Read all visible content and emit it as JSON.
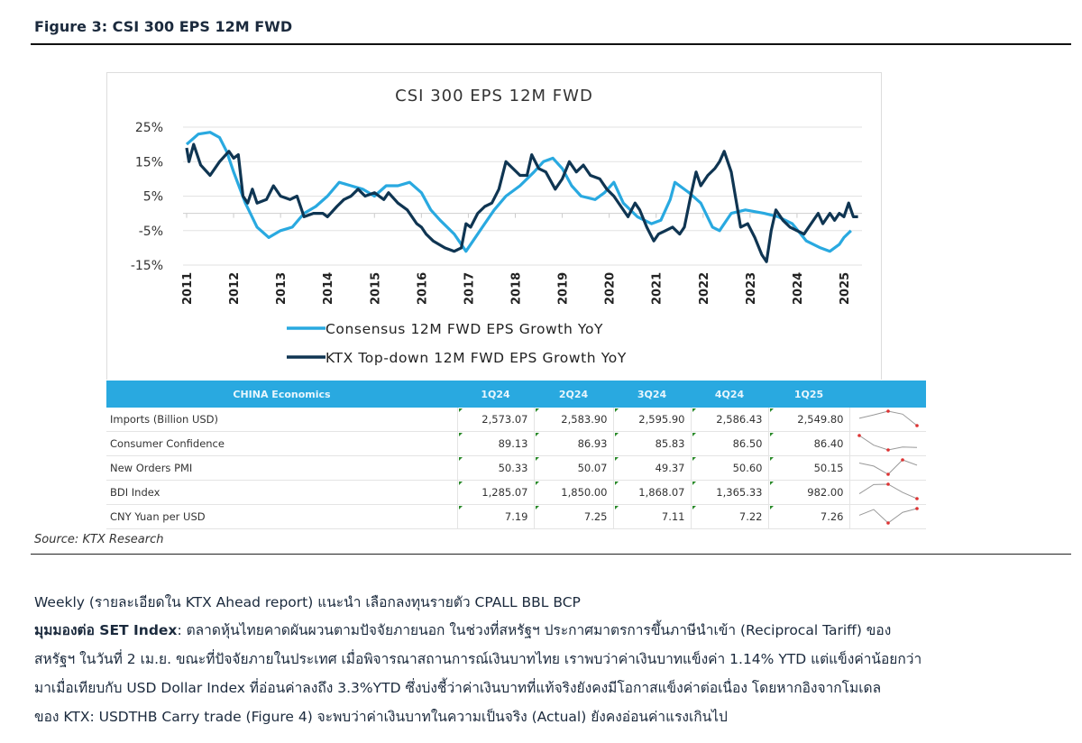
{
  "figure_title": "Figure 3: CSI 300 EPS 12M FWD",
  "chart_data": {
    "type": "line",
    "title": "CSI 300 EPS 12M FWD",
    "y_ticks": [
      "25%",
      "15%",
      "5%",
      "-5%",
      "-15%"
    ],
    "ylim": [
      -15,
      25
    ],
    "x_ticks": [
      "2011",
      "2012",
      "2013",
      "2014",
      "2015",
      "2016",
      "2017",
      "2018",
      "2019",
      "2020",
      "2021",
      "2022",
      "2023",
      "2024",
      "2025"
    ],
    "xlim": [
      2011,
      2025.2
    ],
    "grid": true,
    "legend_position": "bottom",
    "series": [
      {
        "name": "Consensus 12M FWD EPS Growth YoY",
        "color": "#29a9e0",
        "points": [
          [
            2011,
            20
          ],
          [
            2011.25,
            23
          ],
          [
            2011.5,
            23.5
          ],
          [
            2011.7,
            22
          ],
          [
            2011.85,
            18
          ],
          [
            2012,
            12
          ],
          [
            2012.25,
            3
          ],
          [
            2012.5,
            -4
          ],
          [
            2012.75,
            -7
          ],
          [
            2013,
            -5
          ],
          [
            2013.25,
            -4
          ],
          [
            2013.5,
            0
          ],
          [
            2013.75,
            2
          ],
          [
            2014,
            5
          ],
          [
            2014.25,
            9
          ],
          [
            2014.5,
            8
          ],
          [
            2014.75,
            7
          ],
          [
            2015,
            5
          ],
          [
            2015.25,
            8
          ],
          [
            2015.5,
            8
          ],
          [
            2015.75,
            9
          ],
          [
            2016,
            6
          ],
          [
            2016.2,
            1
          ],
          [
            2016.4,
            -2
          ],
          [
            2016.7,
            -6
          ],
          [
            2016.95,
            -11
          ],
          [
            2017.1,
            -8
          ],
          [
            2017.3,
            -4
          ],
          [
            2017.55,
            1
          ],
          [
            2017.8,
            5
          ],
          [
            2018.1,
            8
          ],
          [
            2018.4,
            12
          ],
          [
            2018.6,
            15
          ],
          [
            2018.8,
            16
          ],
          [
            2019,
            13
          ],
          [
            2019.2,
            8
          ],
          [
            2019.4,
            5
          ],
          [
            2019.7,
            4
          ],
          [
            2019.9,
            6
          ],
          [
            2020.1,
            9
          ],
          [
            2020.3,
            3
          ],
          [
            2020.6,
            -1
          ],
          [
            2020.9,
            -3
          ],
          [
            2021.1,
            -2
          ],
          [
            2021.3,
            4
          ],
          [
            2021.4,
            9
          ],
          [
            2021.7,
            6
          ],
          [
            2021.95,
            3
          ],
          [
            2022.2,
            -4
          ],
          [
            2022.35,
            -5
          ],
          [
            2022.6,
            0
          ],
          [
            2022.9,
            1
          ],
          [
            2023.3,
            0
          ],
          [
            2023.6,
            -1
          ],
          [
            2023.9,
            -3
          ],
          [
            2024.2,
            -8
          ],
          [
            2024.5,
            -10
          ],
          [
            2024.7,
            -11
          ],
          [
            2024.9,
            -9
          ],
          [
            2025,
            -7
          ],
          [
            2025.15,
            -5
          ]
        ]
      },
      {
        "name": "KTX Top-down 12M FWD EPS Growth YoY",
        "color": "#0f3552",
        "points": [
          [
            2011,
            19
          ],
          [
            2011.05,
            15
          ],
          [
            2011.15,
            20
          ],
          [
            2011.3,
            14
          ],
          [
            2011.5,
            11
          ],
          [
            2011.7,
            15
          ],
          [
            2011.9,
            18
          ],
          [
            2012,
            16
          ],
          [
            2012.1,
            17
          ],
          [
            2012.2,
            5
          ],
          [
            2012.3,
            3
          ],
          [
            2012.4,
            7
          ],
          [
            2012.5,
            3
          ],
          [
            2012.7,
            4
          ],
          [
            2012.85,
            8
          ],
          [
            2013,
            5
          ],
          [
            2013.2,
            4
          ],
          [
            2013.35,
            5
          ],
          [
            2013.5,
            -1
          ],
          [
            2013.7,
            0
          ],
          [
            2013.9,
            0
          ],
          [
            2014,
            -1
          ],
          [
            2014.2,
            2
          ],
          [
            2014.35,
            4
          ],
          [
            2014.5,
            5
          ],
          [
            2014.65,
            7
          ],
          [
            2014.8,
            5
          ],
          [
            2015,
            6
          ],
          [
            2015.2,
            4
          ],
          [
            2015.3,
            6
          ],
          [
            2015.5,
            3
          ],
          [
            2015.7,
            1
          ],
          [
            2015.9,
            -3
          ],
          [
            2016,
            -4
          ],
          [
            2016.1,
            -6
          ],
          [
            2016.25,
            -8
          ],
          [
            2016.5,
            -10
          ],
          [
            2016.7,
            -11
          ],
          [
            2016.85,
            -10
          ],
          [
            2016.95,
            -3
          ],
          [
            2017.05,
            -4
          ],
          [
            2017.2,
            0
          ],
          [
            2017.35,
            2
          ],
          [
            2017.5,
            3
          ],
          [
            2017.65,
            7
          ],
          [
            2017.8,
            15
          ],
          [
            2017.95,
            13
          ],
          [
            2018.1,
            11
          ],
          [
            2018.25,
            11
          ],
          [
            2018.35,
            17
          ],
          [
            2018.5,
            13
          ],
          [
            2018.65,
            12
          ],
          [
            2018.85,
            7
          ],
          [
            2019,
            10
          ],
          [
            2019.15,
            15
          ],
          [
            2019.3,
            12
          ],
          [
            2019.45,
            14
          ],
          [
            2019.6,
            11
          ],
          [
            2019.8,
            10
          ],
          [
            2019.95,
            7
          ],
          [
            2020.1,
            5
          ],
          [
            2020.25,
            2
          ],
          [
            2020.4,
            -1
          ],
          [
            2020.55,
            3
          ],
          [
            2020.65,
            1
          ],
          [
            2020.8,
            -4
          ],
          [
            2020.95,
            -8
          ],
          [
            2021.05,
            -6
          ],
          [
            2021.2,
            -5
          ],
          [
            2021.35,
            -4
          ],
          [
            2021.5,
            -6
          ],
          [
            2021.6,
            -4
          ],
          [
            2021.75,
            6
          ],
          [
            2021.85,
            12
          ],
          [
            2021.95,
            8
          ],
          [
            2022.1,
            11
          ],
          [
            2022.25,
            13
          ],
          [
            2022.35,
            15
          ],
          [
            2022.45,
            18
          ],
          [
            2022.6,
            12
          ],
          [
            2022.7,
            4
          ],
          [
            2022.8,
            -4
          ],
          [
            2022.95,
            -3
          ],
          [
            2023.1,
            -7
          ],
          [
            2023.25,
            -12
          ],
          [
            2023.35,
            -14
          ],
          [
            2023.45,
            -5
          ],
          [
            2023.55,
            1
          ],
          [
            2023.7,
            -2
          ],
          [
            2023.85,
            -4
          ],
          [
            2024,
            -5
          ],
          [
            2024.15,
            -6
          ],
          [
            2024.3,
            -3
          ],
          [
            2024.45,
            0
          ],
          [
            2024.55,
            -3
          ],
          [
            2024.7,
            0
          ],
          [
            2024.8,
            -2
          ],
          [
            2024.9,
            0
          ],
          [
            2025.0,
            -1
          ],
          [
            2025.1,
            3
          ],
          [
            2025.2,
            -1
          ],
          [
            2025.3,
            -1
          ]
        ]
      }
    ]
  },
  "table": {
    "header": [
      "CHINA Economics",
      "1Q24",
      "2Q24",
      "3Q24",
      "4Q24",
      "1Q25"
    ],
    "rows": [
      {
        "label": "Imports (Billion USD)",
        "values": [
          "2,573.07",
          "2,583.90",
          "2,595.90",
          "2,586.43",
          "2,549.80"
        ],
        "spark": [
          2573.07,
          2583.9,
          2595.9,
          2586.43,
          2549.8
        ]
      },
      {
        "label": "Consumer Confidence",
        "values": [
          "89.13",
          "86.93",
          "85.83",
          "86.50",
          "86.40"
        ],
        "spark": [
          89.13,
          86.93,
          85.83,
          86.5,
          86.4
        ]
      },
      {
        "label": "New Orders PMI",
        "values": [
          "50.33",
          "50.07",
          "49.37",
          "50.60",
          "50.15"
        ],
        "spark": [
          50.33,
          50.07,
          49.37,
          50.6,
          50.15
        ]
      },
      {
        "label": "BDI Index",
        "values": [
          "1,285.07",
          "1,850.00",
          "1,868.07",
          "1,365.33",
          "982.00"
        ],
        "spark": [
          1285.07,
          1850,
          1868.07,
          1365.33,
          982
        ]
      },
      {
        "label": "CNY Yuan per USD",
        "values": [
          "7.19",
          "7.25",
          "7.11",
          "7.22",
          "7.26"
        ],
        "spark": [
          7.19,
          7.25,
          7.11,
          7.22,
          7.26
        ]
      }
    ]
  },
  "source": "Source: KTX Research",
  "paragraphs": {
    "heading": "Weekly (รายละเอียดใน KTX Ahead report) แนะนำ เลือกลงทุนรายตัว CPALL BBL BCP",
    "lead_bold": "มุมมองต่อ SET Index",
    "line1": ": ตลาดหุ้นไทยคาดผันผวนตามปัจจัยภายนอก ในช่วงที่สหรัฐฯ ประกาศมาตรการขึ้นภาษีนำเข้า (Reciprocal Tariff) ของ",
    "line2": "สหรัฐฯ ในวันที่ 2 เม.ย. ขณะที่ปัจจัยภายในประเทศ เมื่อพิจารณาสถานการณ์เงินบาทไทย เราพบว่าค่าเงินบาทแข็งค่า 1.14% YTD แต่แข็งค่าน้อยกว่า",
    "line3": "มาเมื่อเทียบกับ USD Dollar Index ที่อ่อนค่าลงถึง 3.3%YTD ซึ่งบ่งชี้ว่าค่าเงินบาทที่แท้จริงยังคงมีโอกาสแข็งค่าต่อเนื่อง โดยหากอิงจากโมเดล",
    "line4": "ของ KTX: USDTHB Carry trade (Figure 4) จะพบว่าค่าเงินบาทในความเป็นจริง (Actual) ยังคงอ่อนค่าแรงเกินไป"
  }
}
